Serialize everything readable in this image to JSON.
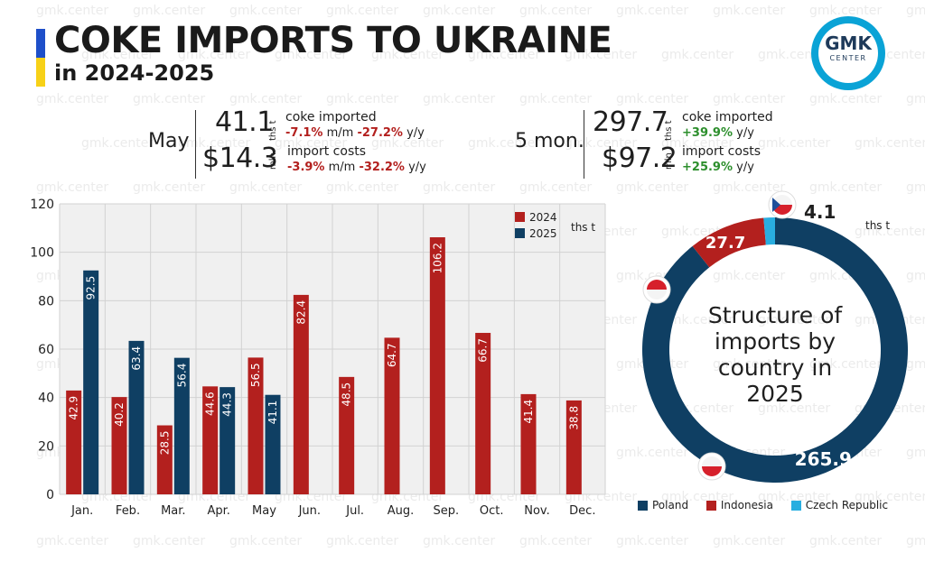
{
  "header": {
    "title": "COKE IMPORTS TO UKRAINE",
    "subtitle": "in 2024-2025",
    "flag_colors": [
      "#1e4fc9",
      "#f7d117"
    ]
  },
  "logo": {
    "main": "GMK",
    "sub": "CENTER"
  },
  "watermark": "gmk.center",
  "kpi_may": {
    "period": "May",
    "volume": "41.1",
    "volume_unit": "ths t",
    "volume_label": "coke imported",
    "volume_mm": "-7.1%",
    "volume_mm_label": "m/m",
    "volume_yy": "-27.2%",
    "volume_yy_label": "y/y",
    "cost": "$14.3",
    "cost_unit": "mln",
    "cost_label": "import costs",
    "cost_mm": "-3.9%",
    "cost_mm_label": "m/m",
    "cost_yy": "-32.2%",
    "cost_yy_label": "y/y"
  },
  "kpi_5mon": {
    "period": "5 mon.",
    "volume": "297.7",
    "volume_unit": "ths t",
    "volume_label": "coke imported",
    "volume_yy": "+39.9%",
    "volume_yy_label": "y/y",
    "cost": "$97.2",
    "cost_unit": "mln",
    "cost_label": "import costs",
    "cost_yy": "+25.9%",
    "cost_yy_label": "y/y"
  },
  "colors": {
    "y2024": "#b3201e",
    "y2025": "#0f3f63",
    "czech": "#29aee0",
    "plot_bg": "#f0f0f0",
    "grid": "#d2d2d2"
  },
  "chart_data": [
    {
      "type": "bar",
      "unit_label": "ths t",
      "categories": [
        "Jan.",
        "Feb.",
        "Mar.",
        "Apr.",
        "May",
        "Jun.",
        "Jul.",
        "Aug.",
        "Sep.",
        "Oct.",
        "Nov.",
        "Dec."
      ],
      "series": [
        {
          "name": "2024",
          "values": [
            42.9,
            40.2,
            28.5,
            44.6,
            56.5,
            82.4,
            48.5,
            64.7,
            106.2,
            66.7,
            41.4,
            38.8
          ]
        },
        {
          "name": "2025",
          "values": [
            92.5,
            63.4,
            56.4,
            44.3,
            41.1,
            null,
            null,
            null,
            null,
            null,
            null,
            null
          ]
        }
      ],
      "ylim": [
        0,
        120
      ],
      "yticks": [
        0,
        20,
        40,
        60,
        80,
        100,
        120
      ],
      "grid": true,
      "legend_position": "top-right"
    },
    {
      "type": "pie",
      "title": "Structure of imports by country in 2025",
      "unit_label": "ths t",
      "labels": [
        "Poland",
        "Indonesia",
        "Czech Republic"
      ],
      "values": [
        265.9,
        27.7,
        4.1
      ],
      "value_labels": [
        "265.9",
        "27.7",
        "4.1"
      ]
    }
  ]
}
